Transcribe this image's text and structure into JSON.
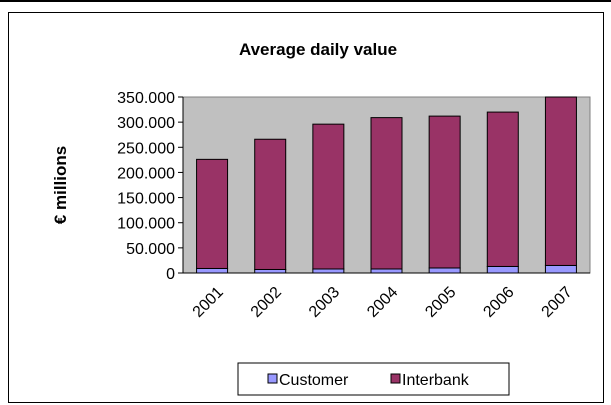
{
  "chart_data": {
    "type": "bar",
    "stacked": true,
    "title": "Average daily value",
    "ylabel": "€ millions",
    "xlabel": "",
    "categories": [
      "2001",
      "2002",
      "2003",
      "2004",
      "2005",
      "2006",
      "2007"
    ],
    "series": [
      {
        "name": "Customer",
        "color": "#9999ff",
        "values": [
          9000,
          7000,
          8000,
          8000,
          10000,
          13000,
          15000
        ]
      },
      {
        "name": "Interbank",
        "color": "#993366",
        "values": [
          217000,
          259000,
          288000,
          301000,
          302000,
          307000,
          340000
        ]
      }
    ],
    "ylim": [
      0,
      350000
    ],
    "yticks": [
      0,
      50000,
      100000,
      150000,
      200000,
      250000,
      300000,
      350000
    ],
    "ytick_labels": [
      "0",
      "50.000",
      "100.000",
      "150.000",
      "200.000",
      "250.000",
      "300.000",
      "350.000"
    ],
    "plot_background": "#c0c0c0",
    "grid": false,
    "legend_position": "bottom"
  }
}
